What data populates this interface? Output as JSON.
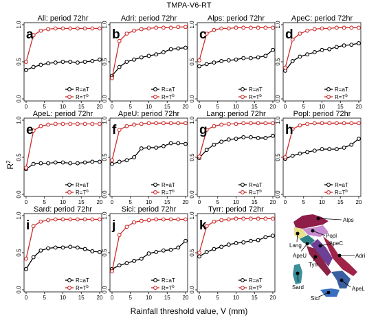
{
  "figure_title": "TMPA-V6-RT",
  "xlabel": "Rainfall threshold value, V (mm)",
  "ylabel": "R",
  "ylabel_sup": "2",
  "colors": {
    "aT": "#000000",
    "aTb": "#cc2a2a",
    "marker_fill": "#ffffff"
  },
  "chart_data": [
    {
      "type": "line",
      "letter": "a",
      "title": "All: period 72hr",
      "x": [
        0,
        2,
        4,
        6,
        8,
        10,
        12,
        14,
        16,
        18,
        20
      ],
      "xlim": [
        0,
        20
      ],
      "ylim": [
        0,
        1
      ],
      "xticks": [
        "0",
        "5",
        "10",
        "15",
        "20"
      ],
      "yticks": [
        "0.0",
        "0.5",
        "1.0"
      ],
      "series": [
        {
          "name": "R=aT",
          "legend_base": "R=aT",
          "legend_sup": "",
          "values": [
            0.39,
            0.43,
            0.46,
            0.48,
            0.49,
            0.5,
            0.5,
            0.49,
            0.5,
            0.51,
            0.53
          ]
        },
        {
          "name": "R=Tb",
          "legend_base": "R=T",
          "legend_sup": "b",
          "values": [
            0.5,
            0.86,
            0.92,
            0.94,
            0.95,
            0.95,
            0.95,
            0.95,
            0.95,
            0.95,
            0.95
          ]
        }
      ]
    },
    {
      "type": "line",
      "letter": "b",
      "title": "Adri: period 72hr",
      "x": [
        0,
        2,
        4,
        6,
        8,
        10,
        12,
        14,
        16,
        18,
        20
      ],
      "xlim": [
        0,
        20
      ],
      "ylim": [
        0,
        1
      ],
      "xticks": [
        "0",
        "5",
        "10",
        "15",
        "20"
      ],
      "yticks": [
        "0.0",
        "0.5",
        "1.0"
      ],
      "series": [
        {
          "name": "R=aT",
          "legend_base": "R=aT",
          "legend_sup": "",
          "values": [
            0.31,
            0.43,
            0.5,
            0.53,
            0.56,
            0.58,
            0.6,
            0.63,
            0.67,
            0.68,
            0.69
          ]
        },
        {
          "name": "R=Tb",
          "legend_base": "R=T",
          "legend_sup": "b",
          "values": [
            0.28,
            0.78,
            0.88,
            0.92,
            0.94,
            0.95,
            0.96,
            0.96,
            0.96,
            0.97,
            0.97
          ]
        }
      ]
    },
    {
      "type": "line",
      "letter": "c",
      "title": "Alps: period 72hr",
      "x": [
        0,
        2,
        4,
        6,
        8,
        10,
        12,
        14,
        16,
        18,
        20
      ],
      "xlim": [
        0,
        20
      ],
      "ylim": [
        0,
        1
      ],
      "xticks": [
        "0",
        "5",
        "10",
        "15",
        "20"
      ],
      "yticks": [
        "0.0",
        "0.5",
        "1.0"
      ],
      "series": [
        {
          "name": "R=aT",
          "legend_base": "R=aT",
          "legend_sup": "",
          "values": [
            0.44,
            0.47,
            0.49,
            0.51,
            0.52,
            0.53,
            0.55,
            0.55,
            0.56,
            0.58,
            0.66
          ]
        },
        {
          "name": "R=Tb",
          "legend_base": "R=T",
          "legend_sup": "b",
          "values": [
            0.52,
            0.88,
            0.93,
            0.95,
            0.95,
            0.96,
            0.96,
            0.96,
            0.96,
            0.96,
            0.96
          ]
        }
      ]
    },
    {
      "type": "line",
      "letter": "d",
      "title": "ApeC: period 72hr",
      "x": [
        0,
        2,
        4,
        6,
        8,
        10,
        12,
        14,
        16,
        18,
        20
      ],
      "xlim": [
        0,
        20
      ],
      "ylim": [
        0,
        1
      ],
      "xticks": [
        "0",
        "5",
        "10",
        "15",
        "20"
      ],
      "yticks": [
        "0.0",
        "0.5",
        "1.0"
      ],
      "series": [
        {
          "name": "R=aT",
          "legend_base": "R=aT",
          "legend_sup": "",
          "values": [
            0.38,
            0.51,
            0.57,
            0.6,
            0.63,
            0.66,
            0.67,
            0.7,
            0.72,
            0.73,
            0.75
          ]
        },
        {
          "name": "R=Tb",
          "legend_base": "R=T",
          "legend_sup": "b",
          "values": [
            0.42,
            0.8,
            0.88,
            0.92,
            0.94,
            0.95,
            0.95,
            0.96,
            0.96,
            0.96,
            0.96
          ]
        }
      ]
    },
    {
      "type": "line",
      "letter": "e",
      "title": "ApeL: period 72hr",
      "x": [
        0,
        2,
        4,
        6,
        8,
        10,
        12,
        14,
        16,
        18,
        20
      ],
      "xlim": [
        0,
        20
      ],
      "ylim": [
        0,
        1
      ],
      "xticks": [
        "0",
        "5",
        "10",
        "15",
        "20"
      ],
      "yticks": [
        "0.0",
        "0.5",
        "1.0"
      ],
      "series": [
        {
          "name": "R=aT",
          "legend_base": "R=aT",
          "legend_sup": "",
          "values": [
            0.34,
            0.41,
            0.42,
            0.42,
            0.43,
            0.43,
            0.42,
            0.42,
            0.43,
            0.44,
            0.44
          ]
        },
        {
          "name": "R=Tb",
          "legend_base": "R=T",
          "legend_sup": "b",
          "values": [
            0.36,
            0.86,
            0.92,
            0.94,
            0.95,
            0.95,
            0.95,
            0.95,
            0.95,
            0.95,
            0.95
          ]
        }
      ]
    },
    {
      "type": "line",
      "letter": "f",
      "title": "ApeU: period 72hr",
      "x": [
        0,
        2,
        4,
        6,
        8,
        10,
        12,
        14,
        16,
        18,
        20
      ],
      "xlim": [
        0,
        20
      ],
      "ylim": [
        0,
        1
      ],
      "xticks": [
        "0",
        "5",
        "10",
        "15",
        "20"
      ],
      "yticks": [
        "0.0",
        "0.5",
        "1.0"
      ],
      "series": [
        {
          "name": "R=aT",
          "legend_base": "R=aT",
          "legend_sup": "",
          "values": [
            0.41,
            0.44,
            0.46,
            0.5,
            0.62,
            0.63,
            0.63,
            0.65,
            0.69,
            0.69,
            0.68
          ]
        },
        {
          "name": "R=Tb",
          "legend_base": "R=T",
          "legend_sup": "b",
          "values": [
            0.46,
            0.87,
            0.92,
            0.94,
            0.95,
            0.96,
            0.96,
            0.96,
            0.96,
            0.96,
            0.96
          ]
        }
      ]
    },
    {
      "type": "line",
      "letter": "g",
      "title": "Lang: period 72hr",
      "x": [
        0,
        2,
        4,
        6,
        8,
        10,
        12,
        14,
        16,
        18,
        20
      ],
      "xlim": [
        0,
        20
      ],
      "ylim": [
        0,
        1
      ],
      "xticks": [
        "0",
        "5",
        "10",
        "15",
        "20"
      ],
      "yticks": [
        "0.0",
        "0.5",
        "1.0"
      ],
      "series": [
        {
          "name": "R=aT",
          "legend_base": "R=aT",
          "legend_sup": "",
          "values": [
            0.49,
            0.6,
            0.67,
            0.71,
            0.74,
            0.75,
            0.77,
            0.77,
            0.76,
            0.76,
            0.79
          ]
        },
        {
          "name": "R=Tb",
          "legend_base": "R=T",
          "legend_sup": "b",
          "values": [
            0.51,
            0.87,
            0.92,
            0.94,
            0.95,
            0.95,
            0.96,
            0.96,
            0.96,
            0.96,
            0.96
          ]
        }
      ]
    },
    {
      "type": "line",
      "letter": "h",
      "title": "Popl: period 72hr",
      "x": [
        0,
        2,
        4,
        6,
        8,
        10,
        12,
        14,
        16,
        18,
        20
      ],
      "xlim": [
        0,
        20
      ],
      "ylim": [
        0,
        1
      ],
      "xticks": [
        "0",
        "5",
        "10",
        "15",
        "20"
      ],
      "yticks": [
        "0.0",
        "0.5",
        "1.0"
      ],
      "series": [
        {
          "name": "R=aT",
          "legend_base": "R=aT",
          "legend_sup": "",
          "values": [
            0.48,
            0.52,
            0.55,
            0.57,
            0.59,
            0.61,
            0.61,
            0.61,
            0.63,
            0.67,
            0.75
          ]
        },
        {
          "name": "R=Tb",
          "legend_base": "R=T",
          "legend_sup": "b",
          "values": [
            0.5,
            0.88,
            0.93,
            0.95,
            0.96,
            0.96,
            0.96,
            0.96,
            0.96,
            0.96,
            0.96
          ]
        }
      ]
    },
    {
      "type": "line",
      "letter": "i",
      "title": "Sard: period 72hr",
      "x": [
        0,
        2,
        4,
        6,
        8,
        10,
        12,
        14,
        16,
        18,
        20
      ],
      "xlim": [
        0,
        20
      ],
      "ylim": [
        0,
        1
      ],
      "xticks": [
        "0",
        "5",
        "10",
        "15",
        "20"
      ],
      "yticks": [
        "0.0",
        "0.5",
        "1.0"
      ],
      "series": [
        {
          "name": "R=aT",
          "legend_base": "R=aT",
          "legend_sup": "",
          "values": [
            0.28,
            0.44,
            0.53,
            0.56,
            0.57,
            0.57,
            0.58,
            0.57,
            0.55,
            0.52,
            0.51
          ]
        },
        {
          "name": "R=Tb",
          "legend_base": "R=T",
          "legend_sup": "b",
          "values": [
            0.42,
            0.86,
            0.92,
            0.94,
            0.95,
            0.95,
            0.95,
            0.95,
            0.95,
            0.95,
            0.95
          ]
        }
      ]
    },
    {
      "type": "line",
      "letter": "j",
      "title": "Sici: period 72hr",
      "x": [
        0,
        2,
        4,
        6,
        8,
        10,
        12,
        14,
        16,
        18,
        20
      ],
      "xlim": [
        0,
        20
      ],
      "ylim": [
        0,
        1
      ],
      "xticks": [
        "0",
        "5",
        "10",
        "15",
        "20"
      ],
      "yticks": [
        "0.0",
        "0.5",
        "1.0"
      ],
      "series": [
        {
          "name": "R=aT",
          "legend_base": "R=aT",
          "legend_sup": "",
          "values": [
            0.28,
            0.33,
            0.36,
            0.39,
            0.42,
            0.49,
            0.51,
            0.53,
            0.54,
            0.57,
            0.66
          ]
        },
        {
          "name": "R=Tb",
          "legend_base": "R=T",
          "legend_sup": "b",
          "values": [
            0.25,
            0.74,
            0.85,
            0.91,
            0.93,
            0.94,
            0.95,
            0.95,
            0.95,
            0.95,
            0.95
          ]
        }
      ]
    },
    {
      "type": "line",
      "letter": "k",
      "title": "Tyrr: period 72hr",
      "x": [
        0,
        2,
        4,
        6,
        8,
        10,
        12,
        14,
        16,
        18,
        20
      ],
      "xlim": [
        0,
        20
      ],
      "ylim": [
        0,
        1
      ],
      "xticks": [
        "0",
        "5",
        "10",
        "15",
        "20"
      ],
      "yticks": [
        "0.0",
        "0.5",
        "1.0"
      ],
      "series": [
        {
          "name": "R=aT",
          "legend_base": "R=aT",
          "legend_sup": "",
          "values": [
            0.45,
            0.51,
            0.55,
            0.58,
            0.61,
            0.63,
            0.64,
            0.66,
            0.67,
            0.71,
            0.73
          ]
        },
        {
          "name": "R=Tb",
          "legend_base": "R=T",
          "legend_sup": "b",
          "values": [
            0.5,
            0.86,
            0.92,
            0.94,
            0.95,
            0.96,
            0.96,
            0.96,
            0.96,
            0.96,
            0.96
          ]
        }
      ]
    }
  ],
  "map": {
    "labels": [
      "Alps",
      "Popl",
      "Lang",
      "ApeC",
      "Adri",
      "ApeU",
      "Tyrr",
      "Sard",
      "ApeL",
      "Sici"
    ],
    "region_colors": {
      "Alps": "#8e1d4a",
      "Popl": "#c78bd0",
      "Lang": "#e8e08a",
      "ApeC": "#6e3f96",
      "Adri": "#a02448",
      "ApeU": "#2e7f86",
      "Tyrr": "#8b2347",
      "Sard": "#3c8f9a",
      "ApeL": "#3a5fa0",
      "Sici": "#3a70c0"
    }
  }
}
